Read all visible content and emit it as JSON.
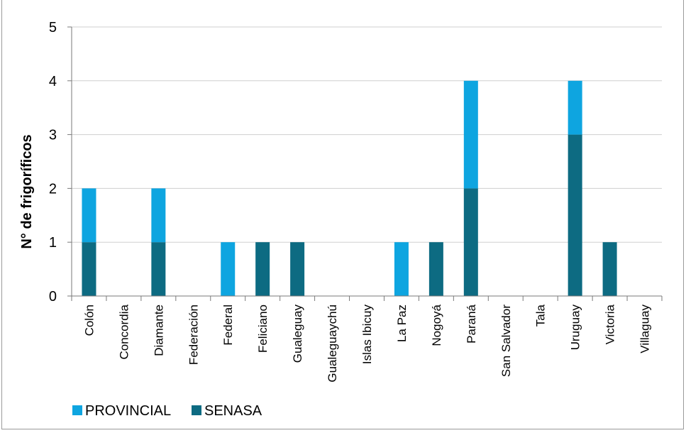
{
  "chart_data": {
    "type": "bar",
    "stacked": true,
    "categories": [
      "Colón",
      "Concordia",
      "Diamante",
      "Federación",
      "Federal",
      "Feliciano",
      "Gualeguay",
      "Gualeguaychú",
      "Islas Ibicuy",
      "La Paz",
      "Nogoyá",
      "Paraná",
      "San Salvador",
      "Tala",
      "Uruguay",
      "Victoria",
      "Villaguay"
    ],
    "series": [
      {
        "name": "SENASA",
        "color": "#0d6b82",
        "values": [
          1,
          0,
          1,
          0,
          0,
          1,
          1,
          0,
          0,
          0,
          1,
          2,
          0,
          0,
          3,
          1,
          0
        ]
      },
      {
        "name": "PROVINCIAL",
        "color": "#0ea5e0",
        "values": [
          1,
          0,
          1,
          0,
          1,
          0,
          0,
          0,
          0,
          1,
          0,
          2,
          0,
          0,
          1,
          0,
          0
        ]
      }
    ],
    "ylabel": "N° de frigoríficos",
    "xlabel": "",
    "ylim": [
      0,
      5
    ],
    "yticks": [
      "0",
      "1",
      "2",
      "3",
      "4",
      "5"
    ],
    "grid": true,
    "legend": {
      "position": "bottom-left",
      "items": [
        "PROVINCIAL",
        "SENASA"
      ]
    }
  }
}
